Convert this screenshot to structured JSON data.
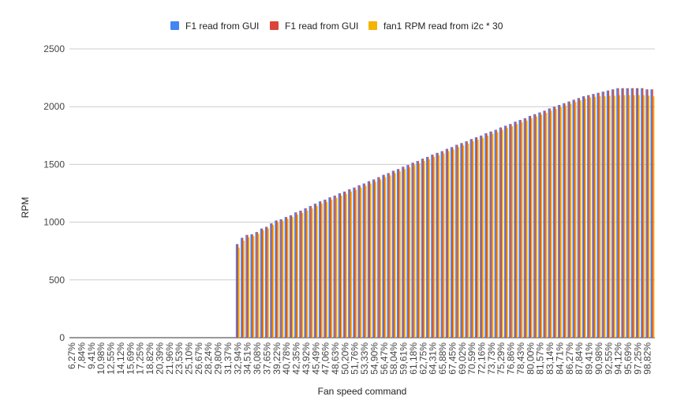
{
  "chart_data": {
    "type": "bar",
    "title": "",
    "xlabel": "Fan speed command",
    "ylabel": "RPM",
    "ylim": [
      0,
      2500
    ],
    "yticks": [
      0,
      500,
      1000,
      1500,
      2000,
      2500
    ],
    "legend_position": "top",
    "grid": true,
    "categories": [
      "6,27%",
      "7,06%",
      "7,84%",
      "8,63%",
      "9,41%",
      "10,20%",
      "10,98%",
      "11,76%",
      "12,55%",
      "13,33%",
      "14,12%",
      "14,90%",
      "15,69%",
      "16,47%",
      "17,25%",
      "18,04%",
      "18,82%",
      "19,61%",
      "20,39%",
      "21,18%",
      "21,96%",
      "22,75%",
      "23,53%",
      "24,31%",
      "25,10%",
      "25,88%",
      "26,67%",
      "27,45%",
      "28,24%",
      "29,02%",
      "29,80%",
      "30,59%",
      "31,37%",
      "32,16%",
      "32,94%",
      "33,73%",
      "34,51%",
      "35,29%",
      "36,08%",
      "36,86%",
      "37,65%",
      "38,43%",
      "39,22%",
      "40,00%",
      "40,78%",
      "41,57%",
      "42,35%",
      "43,14%",
      "43,92%",
      "44,71%",
      "45,49%",
      "46,27%",
      "47,06%",
      "47,84%",
      "48,63%",
      "49,41%",
      "50,20%",
      "50,98%",
      "51,76%",
      "52,55%",
      "53,33%",
      "54,12%",
      "54,90%",
      "55,69%",
      "56,47%",
      "57,25%",
      "58,04%",
      "58,82%",
      "59,61%",
      "60,39%",
      "61,18%",
      "61,96%",
      "62,75%",
      "63,53%",
      "64,31%",
      "65,10%",
      "65,88%",
      "66,67%",
      "67,45%",
      "68,24%",
      "69,02%",
      "69,80%",
      "70,59%",
      "71,37%",
      "72,16%",
      "72,94%",
      "73,73%",
      "74,51%",
      "75,29%",
      "76,08%",
      "76,86%",
      "77,65%",
      "78,43%",
      "79,22%",
      "80,00%",
      "80,78%",
      "81,57%",
      "82,35%",
      "83,14%",
      "83,92%",
      "84,71%",
      "85,49%",
      "86,27%",
      "87,06%",
      "87,84%",
      "88,63%",
      "89,41%",
      "90,20%",
      "90,98%",
      "91,76%",
      "92,55%",
      "93,33%",
      "94,12%",
      "94,90%",
      "95,69%",
      "96,47%",
      "97,25%",
      "98,04%",
      "98,82%",
      "99,61%"
    ],
    "series": [
      {
        "name": "F1 read from GUI",
        "color": "#4285f4",
        "values": [
          0,
          0,
          0,
          0,
          0,
          0,
          0,
          0,
          0,
          0,
          0,
          0,
          0,
          0,
          0,
          0,
          0,
          0,
          0,
          0,
          0,
          0,
          0,
          0,
          0,
          0,
          0,
          0,
          0,
          0,
          0,
          0,
          0,
          0,
          810,
          865,
          890,
          895,
          915,
          945,
          960,
          990,
          1015,
          1025,
          1045,
          1060,
          1085,
          1100,
          1120,
          1140,
          1160,
          1180,
          1195,
          1215,
          1230,
          1250,
          1265,
          1285,
          1300,
          1320,
          1335,
          1355,
          1370,
          1390,
          1410,
          1425,
          1445,
          1460,
          1480,
          1495,
          1515,
          1530,
          1550,
          1565,
          1585,
          1600,
          1615,
          1635,
          1650,
          1670,
          1685,
          1700,
          1720,
          1735,
          1750,
          1770,
          1785,
          1800,
          1820,
          1835,
          1850,
          1870,
          1885,
          1900,
          1920,
          1935,
          1950,
          1965,
          1985,
          2000,
          2015,
          2030,
          2045,
          2060,
          2075,
          2090,
          2100,
          2110,
          2120,
          2130,
          2140,
          2150,
          2160,
          2160,
          2160,
          2160,
          2160,
          2160,
          2150,
          2150
        ]
      },
      {
        "name": "F1 read from GUI",
        "color": "#db4437",
        "values": [
          0,
          0,
          0,
          0,
          0,
          0,
          0,
          0,
          0,
          0,
          0,
          0,
          0,
          0,
          0,
          0,
          0,
          0,
          0,
          0,
          0,
          0,
          0,
          0,
          0,
          0,
          0,
          0,
          0,
          0,
          0,
          0,
          0,
          0,
          810,
          865,
          890,
          895,
          915,
          945,
          960,
          990,
          1015,
          1025,
          1045,
          1060,
          1085,
          1100,
          1120,
          1140,
          1160,
          1180,
          1195,
          1215,
          1230,
          1250,
          1265,
          1285,
          1300,
          1320,
          1335,
          1355,
          1370,
          1390,
          1410,
          1425,
          1445,
          1460,
          1480,
          1495,
          1515,
          1530,
          1550,
          1565,
          1585,
          1600,
          1615,
          1635,
          1650,
          1670,
          1685,
          1700,
          1720,
          1735,
          1750,
          1770,
          1785,
          1800,
          1820,
          1835,
          1850,
          1870,
          1885,
          1900,
          1920,
          1935,
          1950,
          1965,
          1985,
          2000,
          2015,
          2030,
          2045,
          2060,
          2075,
          2090,
          2100,
          2110,
          2120,
          2130,
          2140,
          2150,
          2160,
          2160,
          2160,
          2160,
          2160,
          2160,
          2150,
          2150
        ]
      },
      {
        "name": "fan1 RPM read from i2c * 30",
        "color": "#f4b400",
        "values": [
          0,
          0,
          0,
          0,
          0,
          0,
          0,
          0,
          0,
          0,
          0,
          0,
          0,
          0,
          0,
          0,
          0,
          0,
          0,
          0,
          0,
          0,
          0,
          0,
          0,
          0,
          0,
          0,
          0,
          0,
          0,
          0,
          0,
          0,
          780,
          840,
          870,
          880,
          900,
          930,
          945,
          975,
          1000,
          1010,
          1030,
          1045,
          1065,
          1080,
          1100,
          1120,
          1140,
          1160,
          1175,
          1195,
          1210,
          1230,
          1245,
          1265,
          1280,
          1300,
          1315,
          1335,
          1350,
          1370,
          1390,
          1405,
          1425,
          1440,
          1460,
          1475,
          1495,
          1510,
          1530,
          1545,
          1565,
          1580,
          1595,
          1615,
          1630,
          1650,
          1665,
          1680,
          1700,
          1715,
          1730,
          1750,
          1765,
          1780,
          1800,
          1815,
          1830,
          1850,
          1865,
          1880,
          1900,
          1915,
          1930,
          1945,
          1965,
          1980,
          1995,
          2010,
          2025,
          2040,
          2055,
          2070,
          2080,
          2085,
          2090,
          2090,
          2095,
          2095,
          2100,
          2100,
          2100,
          2100,
          2100,
          2100,
          2095,
          2090
        ]
      }
    ]
  }
}
